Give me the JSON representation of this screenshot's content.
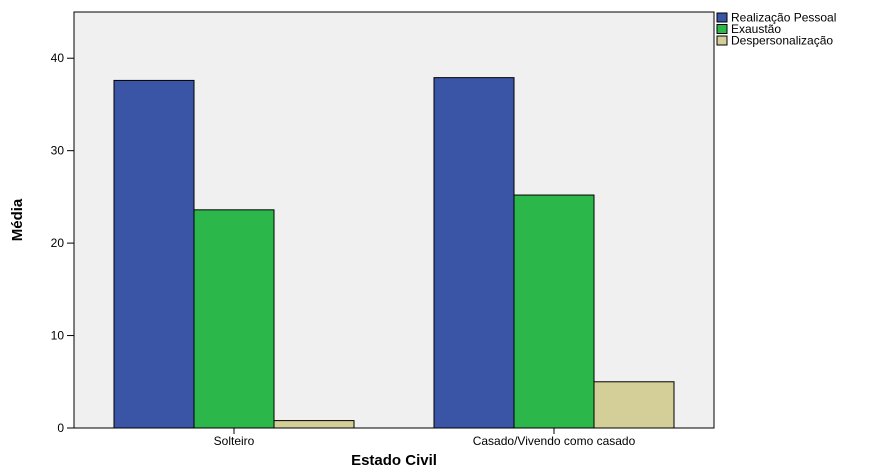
{
  "chart_data": {
    "type": "bar",
    "xlabel": "Estado Civil",
    "ylabel": "Média",
    "ylim": [
      0,
      45
    ],
    "yticks": [
      0,
      10,
      20,
      30,
      40
    ],
    "grid": false,
    "legend_position": "top-right-outside",
    "categories": [
      "Solteiro",
      "Casado/Vivendo como casado"
    ],
    "series": [
      {
        "name": "Realização Pessoal",
        "color": "#3a54a6",
        "values": [
          37.6,
          37.9
        ]
      },
      {
        "name": "Exaustão",
        "color": "#2cb74a",
        "values": [
          23.6,
          25.2
        ]
      },
      {
        "name": "Despersonalização",
        "color": "#d4ce98",
        "values": [
          0.8,
          5.0
        ]
      }
    ],
    "plot_background": "#f0f0f0"
  }
}
